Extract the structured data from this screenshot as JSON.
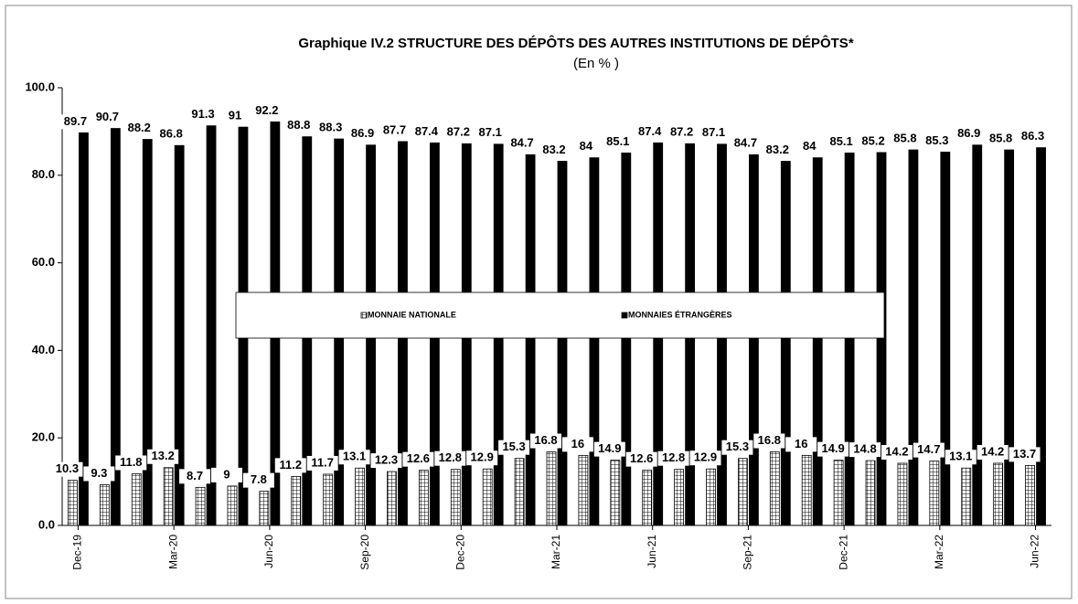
{
  "chart_data": {
    "type": "bar",
    "title": "Graphique IV.2  STRUCTURE DES DÉPÔTS DES AUTRES INSTITUTIONS DE DÉPÔTS*",
    "subtitle": "(En % )",
    "categories": [
      "Dec-19",
      null,
      null,
      "Mar-20",
      null,
      null,
      "Jun-20",
      null,
      null,
      "Sep-20",
      null,
      null,
      "Dec-20",
      null,
      null,
      "Mar-21",
      null,
      null,
      "Jun-21",
      null,
      null,
      "Sep-21",
      null,
      null,
      "Dec-21",
      null,
      null,
      "Mar-22",
      null,
      null,
      "Jun-22"
    ],
    "series": [
      {
        "name": "MONNAIE NATIONALE",
        "color": "#ffffff",
        "values": [
          10.3,
          9.3,
          11.8,
          13.2,
          8.7,
          9.0,
          7.8,
          11.2,
          11.7,
          13.1,
          12.3,
          12.6,
          12.8,
          12.9,
          15.3,
          16.8,
          16.0,
          14.9,
          12.6,
          12.8,
          12.9,
          15.3,
          16.8,
          16.0,
          14.9,
          14.8,
          14.2,
          14.7,
          13.1,
          14.2,
          13.7
        ]
      },
      {
        "name": "MONNAIES ÉTRANGÈRES",
        "color": "#000000",
        "values": [
          89.7,
          90.7,
          88.2,
          86.8,
          91.3,
          91.0,
          92.2,
          88.8,
          88.3,
          86.9,
          87.7,
          87.4,
          87.2,
          87.1,
          84.7,
          83.2,
          84.0,
          85.1,
          87.4,
          87.2,
          87.1,
          84.7,
          83.2,
          84.0,
          85.1,
          85.2,
          85.8,
          85.3,
          86.9,
          85.8,
          86.3
        ]
      }
    ],
    "ylim": [
      0,
      100
    ],
    "yticks": [
      {
        "value": 0,
        "label": "0.0"
      },
      {
        "value": 20,
        "label": "20.0"
      },
      {
        "value": 40,
        "label": "40.0"
      },
      {
        "value": 60,
        "label": "60.0"
      },
      {
        "value": 80,
        "label": "80.0"
      },
      {
        "value": 100,
        "label": "100.0"
      }
    ],
    "legend": "center"
  }
}
